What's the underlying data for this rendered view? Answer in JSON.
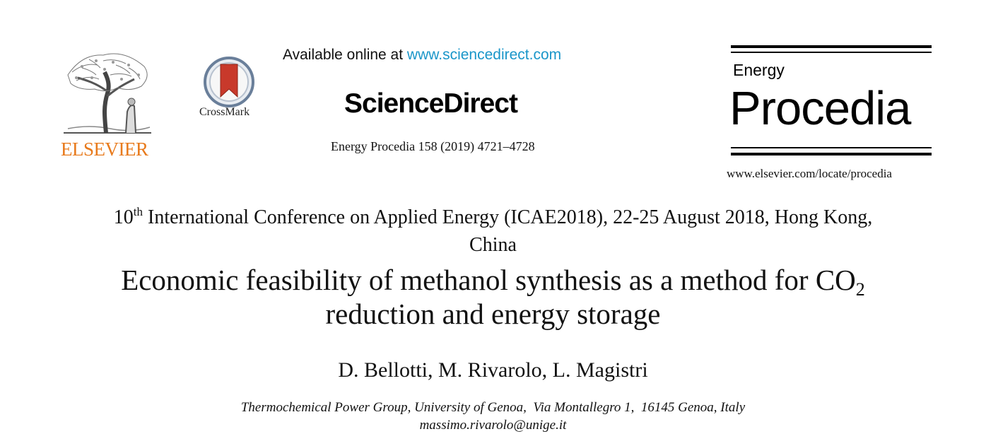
{
  "header": {
    "publisher": "ELSEVIER",
    "crossmark_label": "CrossMark",
    "available_prefix": "Available online at ",
    "available_url": "www.sciencedirect.com",
    "platform": "ScienceDirect",
    "journal_reference": "Energy Procedia 158 (2019) 4721–4728",
    "journal_box": {
      "line1": "Energy",
      "line2": "Procedia",
      "url": "www.elsevier.com/locate/procedia"
    }
  },
  "conference": {
    "number": "10",
    "ordinal_suffix": "th",
    "line1_rest": " International Conference on Applied Energy (ICAE2018), 22-25 August 2018, Hong Kong,",
    "line2": "China"
  },
  "title": {
    "line1_main": "Economic feasibility of methanol synthesis as a method for CO",
    "line1_subscript": "2",
    "line2": "reduction and energy storage"
  },
  "authors": "D. Bellotti, M. Rivarolo, L. Magistri",
  "affiliation": "Thermochemical Power Group, University of Genoa,  Via Montallegro 1,  16145 Genoa, Italy",
  "email": "massimo.rivarolo@unige.it",
  "colors": {
    "elsevier_orange": "#e87a1c",
    "link_blue": "#1a96c9",
    "crossmark_red": "#c8392b",
    "crossmark_ring": "#6a7f9a"
  }
}
